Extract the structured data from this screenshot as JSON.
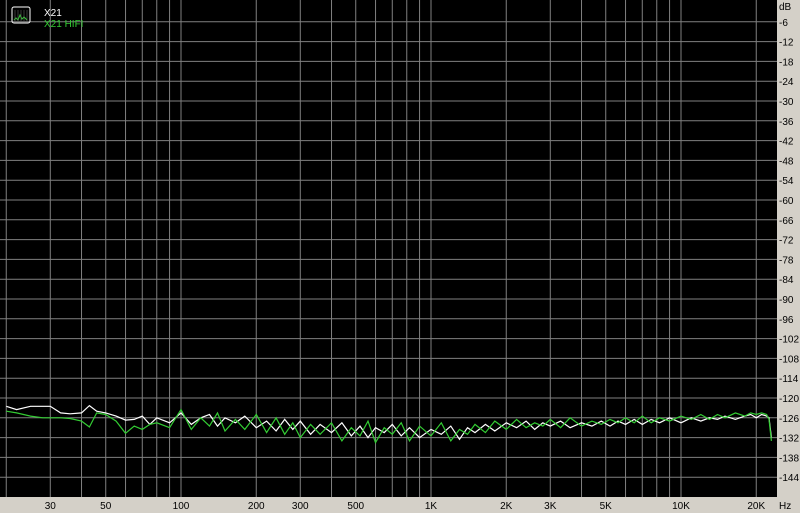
{
  "chart_data": {
    "type": "line",
    "title": "",
    "xlabel": "Hz",
    "ylabel": "dB",
    "xscale": "log",
    "xlim": [
      19,
      24000
    ],
    "ylim": [
      -150,
      0
    ],
    "grid": true,
    "legend_position": "top-left",
    "background": "#000000",
    "grid_color": "#808080",
    "x_tick_labels": [
      {
        "value": 30,
        "label": "30"
      },
      {
        "value": 50,
        "label": "50"
      },
      {
        "value": 100,
        "label": "100"
      },
      {
        "value": 200,
        "label": "200"
      },
      {
        "value": 300,
        "label": "300"
      },
      {
        "value": 500,
        "label": "500"
      },
      {
        "value": 1000,
        "label": "1K"
      },
      {
        "value": 2000,
        "label": "2K"
      },
      {
        "value": 3000,
        "label": "3K"
      },
      {
        "value": 5000,
        "label": "5K"
      },
      {
        "value": 10000,
        "label": "10K"
      },
      {
        "value": 20000,
        "label": "20K"
      }
    ],
    "y_ticks": [
      -6,
      -12,
      -18,
      -24,
      -30,
      -36,
      -42,
      -48,
      -54,
      -60,
      -66,
      -72,
      -78,
      -84,
      -90,
      -96,
      -102,
      -108,
      -114,
      -120,
      -126,
      -132,
      -138,
      -144
    ],
    "x": [
      20,
      22,
      25,
      28,
      30,
      33,
      36,
      40,
      43,
      46,
      50,
      55,
      60,
      65,
      70,
      75,
      80,
      90,
      100,
      110,
      120,
      130,
      140,
      150,
      165,
      180,
      200,
      220,
      240,
      260,
      280,
      300,
      330,
      360,
      400,
      440,
      480,
      520,
      560,
      600,
      650,
      700,
      760,
      820,
      900,
      1000,
      1100,
      1200,
      1300,
      1400,
      1500,
      1650,
      1800,
      2000,
      2200,
      2400,
      2600,
      2800,
      3000,
      3300,
      3600,
      4000,
      4400,
      4800,
      5200,
      5600,
      6000,
      6500,
      7000,
      7600,
      8200,
      9000,
      10000,
      11000,
      12000,
      13000,
      14000,
      15000,
      16500,
      18000,
      19000,
      20000,
      21000,
      22000,
      22500,
      23000
    ],
    "series": [
      {
        "name": "X21",
        "color": "#ffffff",
        "values": [
          -122.5,
          -123.5,
          -122.5,
          -122.5,
          -122.5,
          -124.5,
          -124.8,
          -124.5,
          -122.3,
          -124,
          -124.5,
          -125.5,
          -126.7,
          -126.5,
          -125.5,
          -128,
          -126,
          -127.5,
          -124.5,
          -128,
          -126,
          -125,
          -128.5,
          -126,
          -127.5,
          -125.5,
          -129,
          -127,
          -130,
          -126.5,
          -129.5,
          -127,
          -131,
          -128,
          -130.5,
          -127.5,
          -131.5,
          -128.5,
          -132,
          -129,
          -130.5,
          -128,
          -131.5,
          -129,
          -132,
          -129.5,
          -131,
          -128.5,
          -132.5,
          -129,
          -130.5,
          -128,
          -130,
          -127.5,
          -129,
          -127,
          -129.5,
          -127.5,
          -128.5,
          -127,
          -129,
          -127.5,
          -128.5,
          -127,
          -128.5,
          -127,
          -128,
          -126.5,
          -128,
          -126.5,
          -127.5,
          -126,
          -127.5,
          -126,
          -127,
          -126,
          -126.5,
          -125.5,
          -126.5,
          -125.5,
          -125,
          -126,
          -125,
          -125.5,
          -126,
          -132
        ]
      },
      {
        "name": "X21 HIFI",
        "color": "#33cc33",
        "values": [
          -124,
          -124.5,
          -125.5,
          -126,
          -126,
          -126,
          -126.2,
          -127,
          -128.8,
          -124.5,
          -125,
          -127,
          -130.7,
          -128.5,
          -129.5,
          -128,
          -127.5,
          -129,
          -123.5,
          -129.5,
          -126,
          -128.5,
          -124.5,
          -130,
          -126.5,
          -129.5,
          -125,
          -130.5,
          -126,
          -131,
          -127.5,
          -132,
          -128,
          -131,
          -127.5,
          -133,
          -129,
          -131.5,
          -127,
          -133.5,
          -129,
          -131,
          -127.5,
          -133,
          -128.5,
          -131.5,
          -127.5,
          -133,
          -129.5,
          -131,
          -128,
          -130.5,
          -127,
          -129.5,
          -126.5,
          -129,
          -127.5,
          -128.5,
          -126.5,
          -129,
          -126,
          -128.5,
          -127,
          -128,
          -126.5,
          -127.5,
          -126,
          -127.5,
          -125.5,
          -127.5,
          -126,
          -127,
          -125.5,
          -126.5,
          -125,
          -126.5,
          -125,
          -126,
          -124.5,
          -125.5,
          -124.5,
          -125,
          -124.5,
          -125,
          -126.5,
          -133
        ]
      }
    ]
  }
}
